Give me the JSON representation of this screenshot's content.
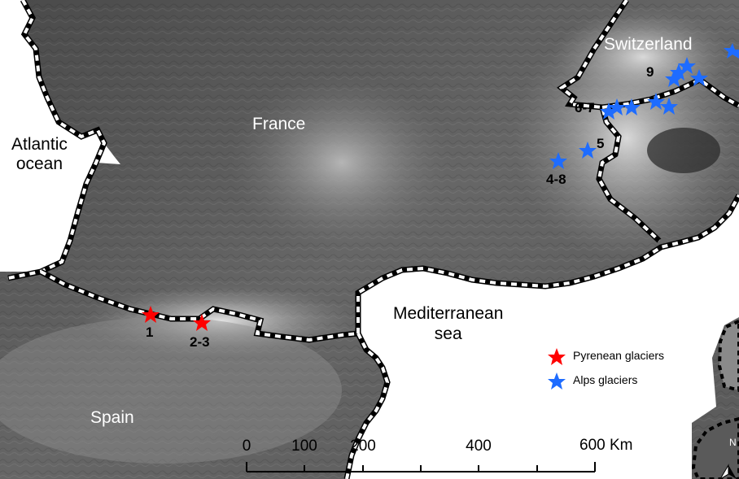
{
  "map": {
    "regions": {
      "france": "France",
      "spain": "Spain",
      "switzerland": "Switzerland",
      "atlantic_line1": "Atlantic",
      "atlantic_line2": "ocean",
      "med_line1": "Mediterranean",
      "med_line2": "sea"
    },
    "site_numbers": {
      "n1": "1",
      "n2_3": "2-3",
      "n4_8": "4-8",
      "n5": "5",
      "n6_7": "6-7",
      "n9": "9"
    },
    "legend": [
      {
        "label": "Pyrenean glaciers",
        "color": "#ff0000",
        "icon": "star-icon"
      },
      {
        "label": "Alps glaciers",
        "color": "#1e6cff",
        "icon": "star-icon"
      }
    ],
    "scale_bar": {
      "ticks": [
        "0",
        "100",
        "200",
        "400",
        "600 Km"
      ]
    },
    "north_arrow": {
      "letter": "N"
    },
    "colors": {
      "pyrenees_star": "#ff0000",
      "alps_star": "#1e6cff",
      "sea": "#ffffff",
      "border": "#000000"
    }
  }
}
